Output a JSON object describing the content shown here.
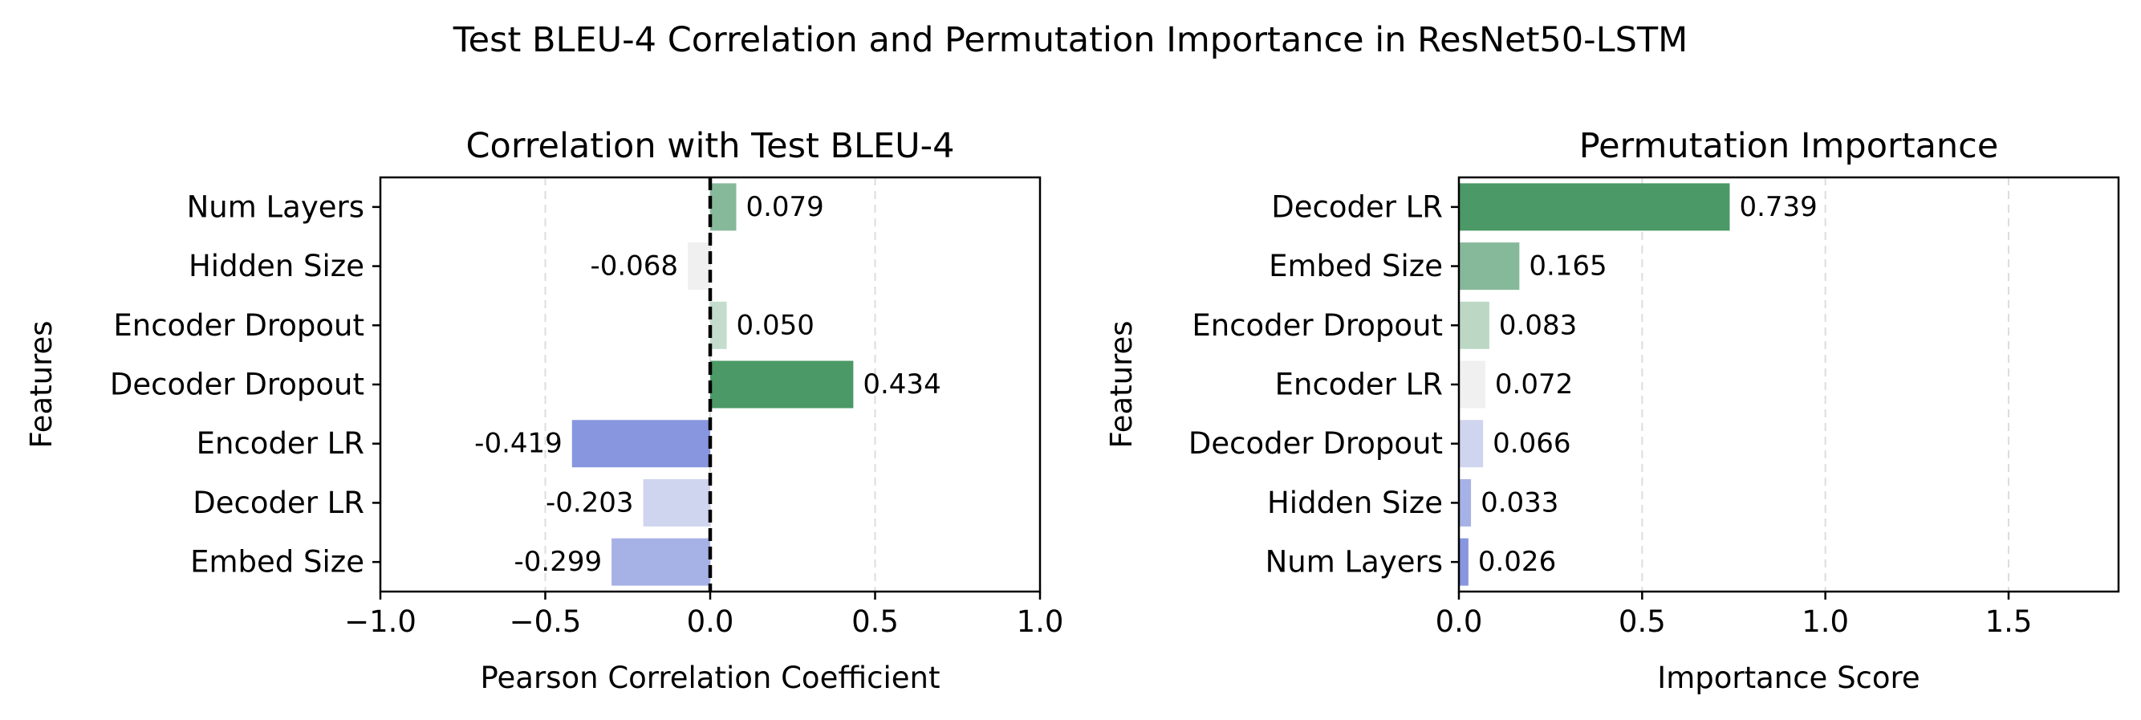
{
  "suptitle": "Test BLEU-4 Correlation and Permutation Importance in ResNet50-LSTM",
  "chart_data": [
    {
      "type": "bar",
      "orientation": "horizontal",
      "title": "Correlation with Test BLEU-4",
      "xlabel": "Pearson Correlation Coefficient",
      "ylabel": "Features",
      "xlim": [
        -1.0,
        1.0
      ],
      "xticks": [
        -1.0,
        -0.5,
        0.0,
        0.5,
        1.0
      ],
      "xtick_labels": [
        "−1.0",
        "−0.5",
        "0.0",
        "0.5",
        "1.0"
      ],
      "grid": "x, dashed",
      "reference_line": 0.0,
      "categories": [
        "Num Layers",
        "Hidden Size",
        "Encoder Dropout",
        "Decoder Dropout",
        "Encoder LR",
        "Decoder LR",
        "Embed Size"
      ],
      "values": [
        0.079,
        -0.068,
        0.05,
        0.434,
        -0.419,
        -0.203,
        -0.299
      ],
      "labels": [
        "0.079",
        "-0.068",
        "0.050",
        "0.434",
        "-0.419",
        "-0.203",
        "-0.299"
      ],
      "colors": [
        "#86b99a",
        "#f0f0f0",
        "#c3dccc",
        "#4a9966",
        "#8796de",
        "#cfd4ef",
        "#a6b2e6"
      ]
    },
    {
      "type": "bar",
      "orientation": "horizontal",
      "title": "Permutation Importance",
      "xlabel": "Importance Score",
      "ylabel": "Features",
      "xlim": [
        0.0,
        1.8
      ],
      "xticks": [
        0.0,
        0.5,
        1.0,
        1.5
      ],
      "xtick_labels": [
        "0.0",
        "0.5",
        "1.0",
        "1.5"
      ],
      "grid": "x, dashed",
      "categories": [
        "Decoder LR",
        "Embed Size",
        "Encoder Dropout",
        "Encoder LR",
        "Decoder Dropout",
        "Hidden Size",
        "Num Layers"
      ],
      "values": [
        0.739,
        0.165,
        0.083,
        0.072,
        0.066,
        0.033,
        0.026
      ],
      "labels": [
        "0.739",
        "0.165",
        "0.083",
        "0.072",
        "0.066",
        "0.033",
        "0.026"
      ],
      "colors": [
        "#4a9966",
        "#86b99a",
        "#bcd8c5",
        "#f0f0f0",
        "#cfd4ef",
        "#a6b2e6",
        "#8796de"
      ]
    }
  ]
}
